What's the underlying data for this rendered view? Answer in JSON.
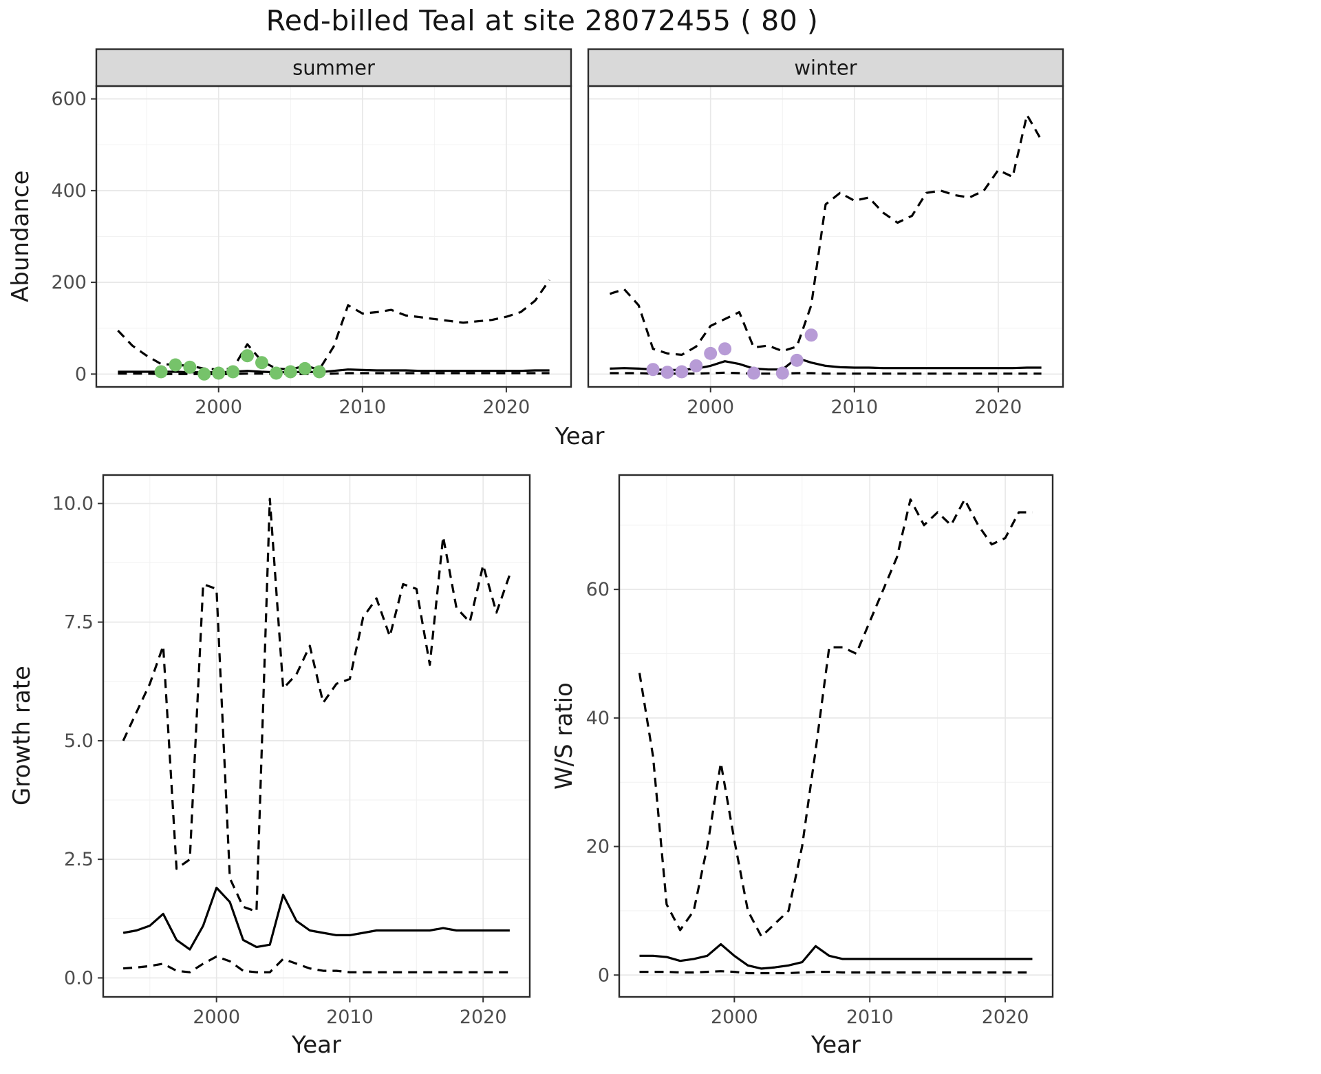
{
  "title": "Red-billed Teal at site 28072455 ( 80 )",
  "labels": {
    "abundance_y": "Abundance",
    "top_x": "Year",
    "growth_y": "Growth rate",
    "growth_x": "Year",
    "ws_y": "W/S ratio",
    "ws_x": "Year"
  },
  "colors": {
    "line": "#000000",
    "summer_points": "#76c36a",
    "winter_points": "#b79bd6",
    "strip_fill": "#d9d9d9",
    "panel_border": "#2b2b2b",
    "grid_major": "#e8e8e8",
    "grid_minor": "#f2f2f2",
    "tick_text": "#4d4d4d"
  },
  "chart_data": [
    {
      "id": "abundance_summer",
      "type": "line",
      "facet_label": "summer",
      "xlabel": "Year",
      "ylabel": "Abundance",
      "xlim": [
        1991.5,
        2024.5
      ],
      "ylim": [
        -28,
        628
      ],
      "xticks": [
        2000,
        2010,
        2020
      ],
      "xtick_labels": [
        "2000",
        "2010",
        "2020"
      ],
      "yticks": [
        0,
        200,
        400,
        600
      ],
      "ytick_labels": [
        "0",
        "200",
        "400",
        "600"
      ],
      "x": [
        1993,
        1994,
        1995,
        1996,
        1997,
        1998,
        1999,
        2000,
        2001,
        2002,
        2003,
        2004,
        2005,
        2006,
        2007,
        2008,
        2009,
        2010,
        2011,
        2012,
        2013,
        2014,
        2015,
        2016,
        2017,
        2018,
        2019,
        2020,
        2021,
        2022,
        2023
      ],
      "series": [
        {
          "name": "upper_95ci",
          "style": "dashed",
          "values": [
            95,
            62,
            40,
            22,
            20,
            18,
            12,
            10,
            12,
            65,
            28,
            12,
            10,
            18,
            10,
            60,
            150,
            132,
            135,
            140,
            128,
            124,
            120,
            116,
            112,
            115,
            118,
            125,
            135,
            160,
            205
          ]
        },
        {
          "name": "median",
          "style": "solid",
          "values": [
            5,
            5,
            5,
            5,
            5,
            4,
            4,
            4,
            5,
            7,
            5,
            4,
            4,
            5,
            4,
            7,
            10,
            9,
            8,
            8,
            8,
            7,
            7,
            7,
            7,
            7,
            7,
            7,
            7,
            8,
            8
          ]
        },
        {
          "name": "lower_95ci",
          "style": "dashed",
          "values": [
            1,
            1,
            1,
            0,
            0,
            0,
            0,
            0,
            0,
            1,
            1,
            0,
            0,
            0,
            0,
            1,
            2,
            2,
            2,
            2,
            2,
            2,
            2,
            2,
            2,
            2,
            2,
            2,
            2,
            2,
            2
          ]
        }
      ],
      "points": {
        "name": "observed_counts_summer",
        "color": "#76c36a",
        "x": [
          1996,
          1997,
          1998,
          1999,
          2000,
          2001,
          2002,
          2003,
          2004,
          2005,
          2006,
          2007
        ],
        "y": [
          5,
          20,
          15,
          0,
          2,
          5,
          40,
          25,
          2,
          5,
          12,
          5
        ]
      }
    },
    {
      "id": "abundance_winter",
      "type": "line",
      "facet_label": "winter",
      "xlabel": "Year",
      "ylabel": "Abundance",
      "xlim": [
        1991.5,
        2024.5
      ],
      "ylim": [
        -28,
        628
      ],
      "xticks": [
        2000,
        2010,
        2020
      ],
      "xtick_labels": [
        "2000",
        "2010",
        "2020"
      ],
      "yticks": [
        0,
        200,
        400,
        600
      ],
      "ytick_labels": [
        "0",
        "200",
        "400",
        "600"
      ],
      "x": [
        1993,
        1994,
        1995,
        1996,
        1997,
        1998,
        1999,
        2000,
        2001,
        2002,
        2003,
        2004,
        2005,
        2006,
        2007,
        2008,
        2009,
        2010,
        2011,
        2012,
        2013,
        2014,
        2015,
        2016,
        2017,
        2018,
        2019,
        2020,
        2021,
        2022,
        2023
      ],
      "series": [
        {
          "name": "upper_95ci",
          "style": "dashed",
          "values": [
            175,
            185,
            150,
            55,
            45,
            42,
            60,
            105,
            120,
            135,
            58,
            62,
            50,
            60,
            150,
            370,
            395,
            378,
            385,
            352,
            330,
            345,
            395,
            400,
            390,
            385,
            400,
            445,
            430,
            565,
            510
          ]
        },
        {
          "name": "median",
          "style": "solid",
          "values": [
            12,
            13,
            12,
            10,
            9,
            9,
            12,
            18,
            28,
            22,
            12,
            10,
            10,
            35,
            25,
            18,
            15,
            14,
            14,
            13,
            13,
            13,
            13,
            13,
            13,
            13,
            13,
            13,
            13,
            14,
            14
          ]
        },
        {
          "name": "lower_95ci",
          "style": "dashed",
          "values": [
            2,
            2,
            2,
            1,
            1,
            1,
            1,
            2,
            3,
            2,
            1,
            1,
            1,
            2,
            2,
            1,
            1,
            1,
            1,
            1,
            1,
            1,
            1,
            1,
            1,
            1,
            1,
            1,
            1,
            1,
            1
          ]
        }
      ],
      "points": {
        "name": "observed_counts_winter",
        "color": "#b79bd6",
        "x": [
          1996,
          1997,
          1998,
          1999,
          2000,
          2001,
          2003,
          2005,
          2006,
          2007
        ],
        "y": [
          10,
          4,
          5,
          18,
          45,
          55,
          2,
          2,
          30,
          85
        ]
      }
    },
    {
      "id": "growth_rate",
      "type": "line",
      "xlabel": "Year",
      "ylabel": "Growth rate",
      "xlim": [
        1991.5,
        2023.5
      ],
      "ylim": [
        -0.4,
        10.6
      ],
      "xticks": [
        2000,
        2010,
        2020
      ],
      "xtick_labels": [
        "2000",
        "2010",
        "2020"
      ],
      "yticks": [
        0,
        2.5,
        5,
        7.5,
        10
      ],
      "ytick_labels": [
        "0.0",
        "2.5",
        "5.0",
        "7.5",
        "10.0"
      ],
      "x": [
        1993,
        1994,
        1995,
        1996,
        1997,
        1998,
        1999,
        2000,
        2001,
        2002,
        2003,
        2004,
        2005,
        2006,
        2007,
        2008,
        2009,
        2010,
        2011,
        2012,
        2013,
        2014,
        2015,
        2016,
        2017,
        2018,
        2019,
        2020,
        2021,
        2022
      ],
      "series": [
        {
          "name": "upper_95ci",
          "style": "dashed",
          "values": [
            5.0,
            5.6,
            6.2,
            7.0,
            2.3,
            2.5,
            8.3,
            8.2,
            2.1,
            1.5,
            1.4,
            10.1,
            6.1,
            6.4,
            7.0,
            5.8,
            6.2,
            6.3,
            7.6,
            8.0,
            7.2,
            8.3,
            8.2,
            6.6,
            9.3,
            7.8,
            7.5,
            8.7,
            7.7,
            8.5
          ]
        },
        {
          "name": "median",
          "style": "solid",
          "values": [
            0.95,
            1.0,
            1.1,
            1.35,
            0.8,
            0.6,
            1.1,
            1.9,
            1.6,
            0.8,
            0.65,
            0.7,
            1.75,
            1.2,
            1.0,
            0.95,
            0.9,
            0.9,
            0.95,
            1.0,
            1.0,
            1.0,
            1.0,
            1.0,
            1.05,
            1.0,
            1.0,
            1.0,
            1.0,
            1.0
          ]
        },
        {
          "name": "lower_95ci",
          "style": "dashed",
          "values": [
            0.2,
            0.22,
            0.25,
            0.3,
            0.15,
            0.12,
            0.3,
            0.45,
            0.35,
            0.15,
            0.12,
            0.12,
            0.4,
            0.3,
            0.2,
            0.15,
            0.15,
            0.12,
            0.12,
            0.12,
            0.12,
            0.12,
            0.12,
            0.12,
            0.12,
            0.12,
            0.12,
            0.12,
            0.12,
            0.12
          ]
        }
      ]
    },
    {
      "id": "ws_ratio",
      "type": "line",
      "xlabel": "Year",
      "ylabel": "W/S ratio",
      "xlim": [
        1991.5,
        2023.5
      ],
      "ylim": [
        -3.4,
        77.8
      ],
      "xticks": [
        2000,
        2010,
        2020
      ],
      "xtick_labels": [
        "2000",
        "2010",
        "2020"
      ],
      "yticks": [
        0,
        20,
        40,
        60
      ],
      "ytick_labels": [
        "0",
        "20",
        "40",
        "60"
      ],
      "x": [
        1993,
        1994,
        1995,
        1996,
        1997,
        1998,
        1999,
        2000,
        2001,
        2002,
        2003,
        2004,
        2005,
        2006,
        2007,
        2008,
        2009,
        2010,
        2011,
        2012,
        2013,
        2014,
        2015,
        2016,
        2017,
        2018,
        2019,
        2020,
        2021,
        2022
      ],
      "series": [
        {
          "name": "upper_95ci",
          "style": "dashed",
          "values": [
            47,
            34,
            11,
            7,
            10,
            20,
            33,
            21,
            10,
            6,
            8,
            10,
            20,
            35,
            51,
            51,
            50,
            55,
            60,
            65,
            74,
            70,
            72,
            70,
            74,
            70,
            67,
            68,
            72,
            72
          ]
        },
        {
          "name": "median",
          "style": "solid",
          "values": [
            3,
            3,
            2.8,
            2.2,
            2.5,
            3,
            4.8,
            3,
            1.5,
            1,
            1.2,
            1.5,
            2,
            4.5,
            3,
            2.5,
            2.5,
            2.5,
            2.5,
            2.5,
            2.5,
            2.5,
            2.5,
            2.5,
            2.5,
            2.5,
            2.5,
            2.5,
            2.5,
            2.5
          ]
        },
        {
          "name": "lower_95ci",
          "style": "dashed",
          "values": [
            0.5,
            0.5,
            0.5,
            0.4,
            0.4,
            0.5,
            0.6,
            0.5,
            0.3,
            0.3,
            0.3,
            0.3,
            0.4,
            0.5,
            0.5,
            0.4,
            0.4,
            0.4,
            0.4,
            0.4,
            0.4,
            0.4,
            0.4,
            0.4,
            0.4,
            0.4,
            0.4,
            0.4,
            0.4,
            0.4
          ]
        }
      ]
    }
  ]
}
